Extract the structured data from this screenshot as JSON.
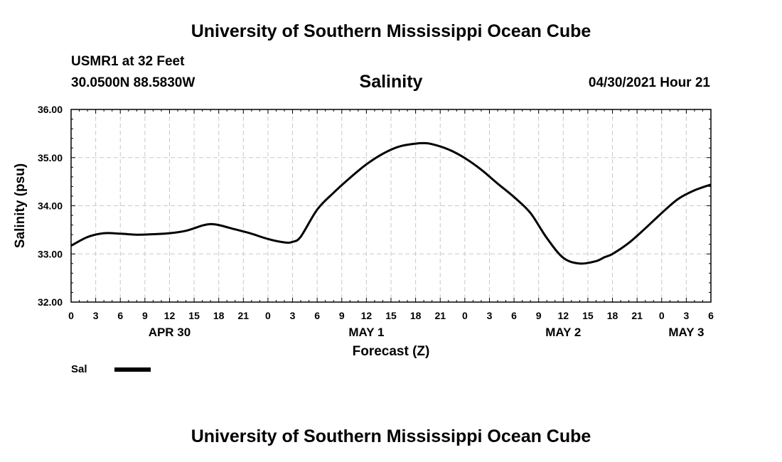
{
  "page": {
    "title_top": "University of Southern Mississippi Ocean Cube",
    "title_bottom": "University of Southern Mississippi Ocean Cube",
    "station": "USMR1 at 32 Feet",
    "location": "30.0500N  88.5830W",
    "datetime": "04/30/2021 Hour 21"
  },
  "chart_data": {
    "type": "line",
    "title": "Salinity",
    "xlabel": "Forecast (Z)",
    "ylabel": "Salinity (psu)",
    "ylim": [
      32,
      36
    ],
    "xlim": [
      0,
      78
    ],
    "grid": true,
    "yticks": [
      "32.00",
      "33.00",
      "34.00",
      "35.00",
      "36.00"
    ],
    "xtick_labels": [
      "0",
      "3",
      "6",
      "9",
      "12",
      "15",
      "18",
      "21",
      "0",
      "3",
      "6",
      "9",
      "12",
      "15",
      "18",
      "21",
      "0",
      "3",
      "6",
      "9",
      "12",
      "15",
      "18",
      "21",
      "0",
      "3",
      "6"
    ],
    "date_labels": [
      {
        "label": "APR 30",
        "hour": 12
      },
      {
        "label": "MAY 1",
        "hour": 36
      },
      {
        "label": "MAY 2",
        "hour": 60
      },
      {
        "label": "MAY 3",
        "hour": 75
      }
    ],
    "legend": [
      {
        "name": "Sal",
        "color": "#000000"
      }
    ],
    "series": [
      {
        "name": "Sal",
        "color": "#000000",
        "x": [
          0,
          2,
          4,
          6,
          8,
          10,
          12,
          14,
          16,
          17,
          18,
          20,
          22,
          24,
          26,
          27,
          28,
          30,
          32,
          34,
          36,
          38,
          40,
          42,
          43,
          44,
          46,
          48,
          50,
          52,
          54,
          56,
          58,
          60,
          62,
          64,
          65,
          66,
          68,
          70,
          72,
          74,
          76,
          78
        ],
        "values": [
          33.17,
          33.35,
          33.43,
          33.42,
          33.4,
          33.41,
          33.43,
          33.48,
          33.59,
          33.62,
          33.6,
          33.51,
          33.42,
          33.31,
          33.24,
          33.25,
          33.36,
          33.92,
          34.27,
          34.58,
          34.86,
          35.08,
          35.23,
          35.29,
          35.3,
          35.28,
          35.17,
          34.99,
          34.75,
          34.46,
          34.18,
          33.85,
          33.33,
          32.92,
          32.8,
          32.85,
          32.93,
          33.0,
          33.23,
          33.53,
          33.85,
          34.14,
          34.32,
          34.44
        ]
      }
    ]
  }
}
